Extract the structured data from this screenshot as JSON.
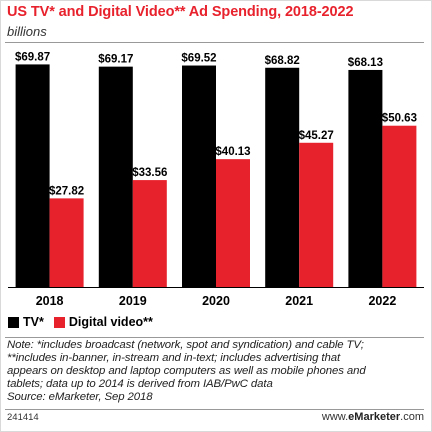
{
  "header": {
    "title": "US TV* and Digital Video** Ad Spending, 2018-2022",
    "subtitle": "billions"
  },
  "chart_data": {
    "type": "bar",
    "categories": [
      "2018",
      "2019",
      "2020",
      "2021",
      "2022"
    ],
    "series": [
      {
        "name": "TV*",
        "color": "#000000",
        "values": [
          69.87,
          69.17,
          69.52,
          68.82,
          68.13
        ],
        "labels": [
          "$69.87",
          "$69.17",
          "$69.52",
          "$68.82",
          "$68.13"
        ]
      },
      {
        "name": "Digital video**",
        "color": "#e8222d",
        "values": [
          27.82,
          33.56,
          40.13,
          45.27,
          50.63
        ],
        "labels": [
          "$27.82",
          "$33.56",
          "$40.13",
          "$45.27",
          "$50.63"
        ]
      }
    ],
    "ylim": [
      0,
      70
    ],
    "grid": false,
    "legend_placement": "bottom-left"
  },
  "notes": {
    "lines": [
      "Note: *includes broadcast (network, spot and syndication) and cable TV;",
      "**includes in-banner, in-stream and in-text; includes advertising that",
      "appears on desktop and laptop computers as well as mobile phones and",
      "tablets; data up to 2014 is derived from IAB/PwC data",
      "Source: eMarketer, Sep 2018"
    ]
  },
  "footer": {
    "chart_id": "241414",
    "url_prefix": "www.",
    "url_brand": "eMarketer",
    "url_suffix": ".com"
  }
}
